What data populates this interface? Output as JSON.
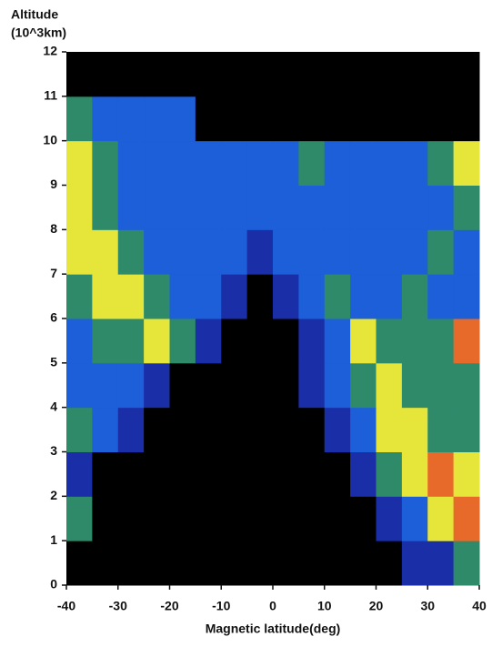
{
  "chart_data": {
    "type": "heatmap",
    "ylabel": [
      "Altitude",
      "(10^3km)"
    ],
    "xlabel": "Magnetic latitude(deg)",
    "xlim": [
      -40,
      40
    ],
    "ylim": [
      0,
      12
    ],
    "xticks": [
      -40,
      -30,
      -20,
      -10,
      0,
      10,
      20,
      30,
      40
    ],
    "yticks": [
      0,
      1,
      2,
      3,
      4,
      5,
      6,
      7,
      8,
      9,
      10,
      11,
      12
    ],
    "x_edges": [
      -40,
      -35,
      -30,
      -25,
      -20,
      -15,
      -10,
      -5,
      0,
      5,
      10,
      15,
      20,
      25,
      30,
      35,
      40
    ],
    "y_edges": [
      0,
      1,
      2,
      3,
      4,
      5,
      6,
      7,
      8,
      9,
      10,
      11,
      12
    ],
    "colors": [
      "#000000",
      "#1a2ea8",
      "#1c5fd8",
      "#2f8a6a",
      "#e6e63a",
      "#e86a2a"
    ],
    "z": [
      [
        0,
        0,
        0,
        0,
        0,
        0,
        0,
        0,
        0,
        0,
        0,
        0,
        0,
        1,
        1,
        3
      ],
      [
        3,
        0,
        0,
        0,
        0,
        0,
        0,
        0,
        0,
        0,
        0,
        0,
        1,
        2,
        4,
        5
      ],
      [
        1,
        0,
        0,
        0,
        0,
        0,
        0,
        0,
        0,
        0,
        0,
        1,
        3,
        4,
        5,
        4
      ],
      [
        3,
        2,
        1,
        0,
        0,
        0,
        0,
        0,
        0,
        0,
        1,
        2,
        4,
        4,
        3,
        3
      ],
      [
        2,
        2,
        2,
        1,
        0,
        0,
        0,
        0,
        0,
        1,
        2,
        3,
        4,
        3,
        3,
        3
      ],
      [
        2,
        3,
        3,
        4,
        3,
        1,
        0,
        0,
        0,
        1,
        2,
        4,
        3,
        3,
        3,
        5
      ],
      [
        3,
        4,
        4,
        3,
        2,
        2,
        1,
        0,
        1,
        2,
        3,
        2,
        2,
        3,
        2,
        2
      ],
      [
        4,
        4,
        3,
        2,
        2,
        2,
        2,
        1,
        2,
        2,
        2,
        2,
        2,
        2,
        3,
        2
      ],
      [
        4,
        3,
        2,
        2,
        2,
        2,
        2,
        2,
        2,
        2,
        2,
        2,
        2,
        2,
        2,
        3
      ],
      [
        4,
        3,
        2,
        2,
        2,
        2,
        2,
        2,
        2,
        3,
        2,
        2,
        2,
        2,
        3,
        4
      ],
      [
        3,
        2,
        2,
        2,
        2,
        0,
        0,
        0,
        0,
        0,
        0,
        0,
        0,
        0,
        0,
        0
      ],
      [
        0,
        0,
        0,
        0,
        0,
        0,
        0,
        0,
        0,
        0,
        0,
        0,
        0,
        0,
        0,
        0
      ]
    ]
  }
}
